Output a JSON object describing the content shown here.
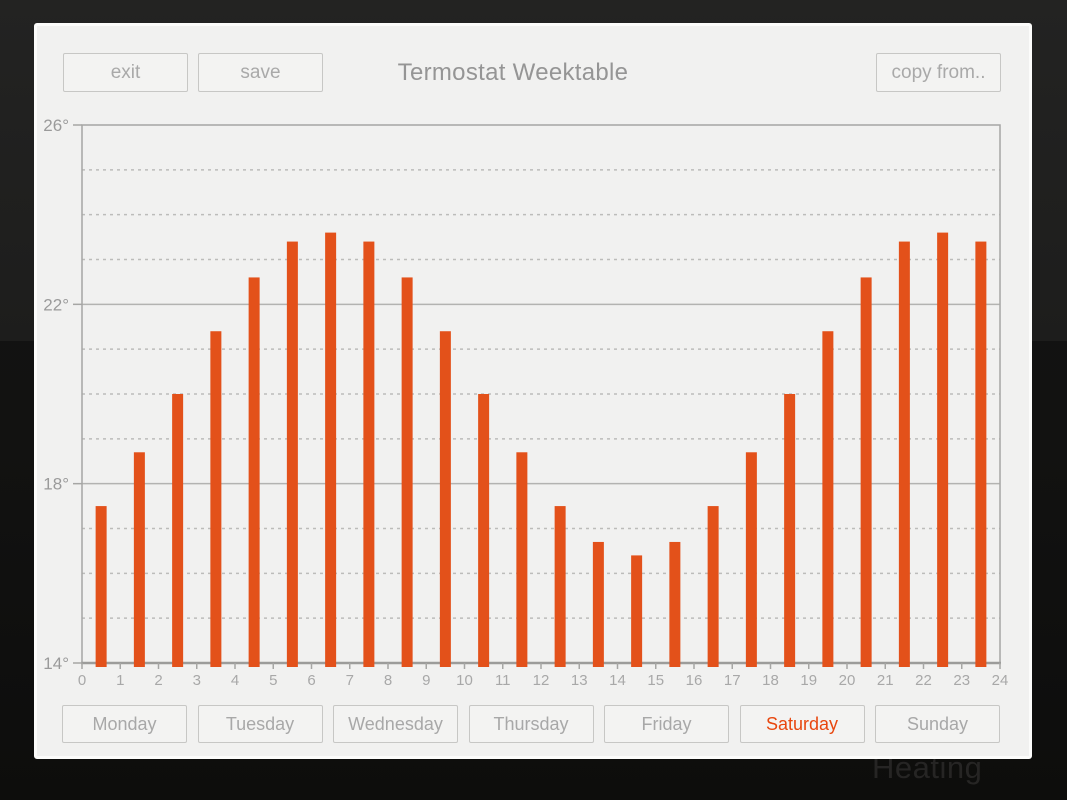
{
  "background_text": "Heating",
  "header": {
    "exit_label": "exit",
    "save_label": "save",
    "title": "Termostat Weektable",
    "copy_from_label": "copy from.."
  },
  "days": [
    {
      "label": "Monday",
      "selected": false
    },
    {
      "label": "Tuesday",
      "selected": false
    },
    {
      "label": "Wednesday",
      "selected": false
    },
    {
      "label": "Thursday",
      "selected": false
    },
    {
      "label": "Friday",
      "selected": false
    },
    {
      "label": "Saturday",
      "selected": true
    },
    {
      "label": "Sunday",
      "selected": false
    }
  ],
  "colors": {
    "bar": "#e3511a",
    "selected_day": "#e8470f",
    "panel_background": "#f1f1f0"
  },
  "chart_data": {
    "type": "bar",
    "title": "Termostat Weektable",
    "xlabel": "",
    "ylabel": "",
    "categories": [
      0,
      1,
      2,
      3,
      4,
      5,
      6,
      7,
      8,
      9,
      10,
      11,
      12,
      13,
      14,
      15,
      16,
      17,
      18,
      19,
      20,
      21,
      22,
      23
    ],
    "values": [
      17.5,
      18.7,
      20,
      21.4,
      22.6,
      23.4,
      23.6,
      23.4,
      22.6,
      21.4,
      20,
      18.7,
      17.5,
      16.7,
      16.4,
      16.7,
      17.5,
      18.7,
      20,
      21.4,
      22.6,
      23.4,
      23.6,
      23.4
    ],
    "ylim": [
      14,
      26
    ],
    "y_major_ticks": [
      14,
      18,
      22,
      26
    ],
    "y_tick_suffix": "°",
    "x_ticks": [
      0,
      1,
      2,
      3,
      4,
      5,
      6,
      7,
      8,
      9,
      10,
      11,
      12,
      13,
      14,
      15,
      16,
      17,
      18,
      19,
      20,
      21,
      22,
      23,
      24
    ],
    "minor_gridline_step": 1,
    "grid": true,
    "legend_position": "none",
    "bars_centered_between_hour_ticks": true,
    "bar_color": "#e3511a"
  }
}
